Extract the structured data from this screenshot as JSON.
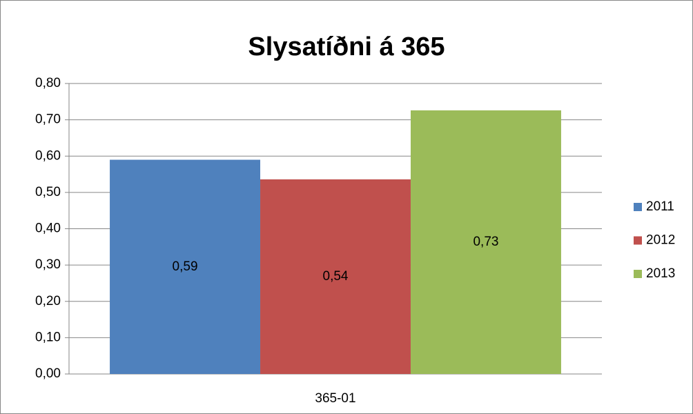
{
  "chart_data": {
    "type": "bar",
    "title": "Slysatíðni á 365",
    "categories": [
      "365-01"
    ],
    "series": [
      {
        "name": "2011",
        "color": "#4f81bd",
        "values": [
          0.59
        ],
        "value_labels": [
          "0,59"
        ]
      },
      {
        "name": "2012",
        "color": "#c0504d",
        "values": [
          0.536
        ],
        "value_labels": [
          "0,54"
        ]
      },
      {
        "name": "2013",
        "color": "#9bbb59",
        "values": [
          0.726
        ],
        "value_labels": [
          "0,73"
        ]
      }
    ],
    "ylim": [
      0,
      0.8
    ],
    "yticks": [
      {
        "value": 0,
        "label": "0,00"
      },
      {
        "value": 0.1,
        "label": "0,10"
      },
      {
        "value": 0.2,
        "label": "0,20"
      },
      {
        "value": 0.3,
        "label": "0,30"
      },
      {
        "value": 0.4,
        "label": "0,40"
      },
      {
        "value": 0.5,
        "label": "0,50"
      },
      {
        "value": 0.6,
        "label": "0,60"
      },
      {
        "value": 0.7,
        "label": "0,70"
      },
      {
        "value": 0.8,
        "label": "0,80"
      }
    ],
    "grid": true,
    "legend": "right"
  }
}
